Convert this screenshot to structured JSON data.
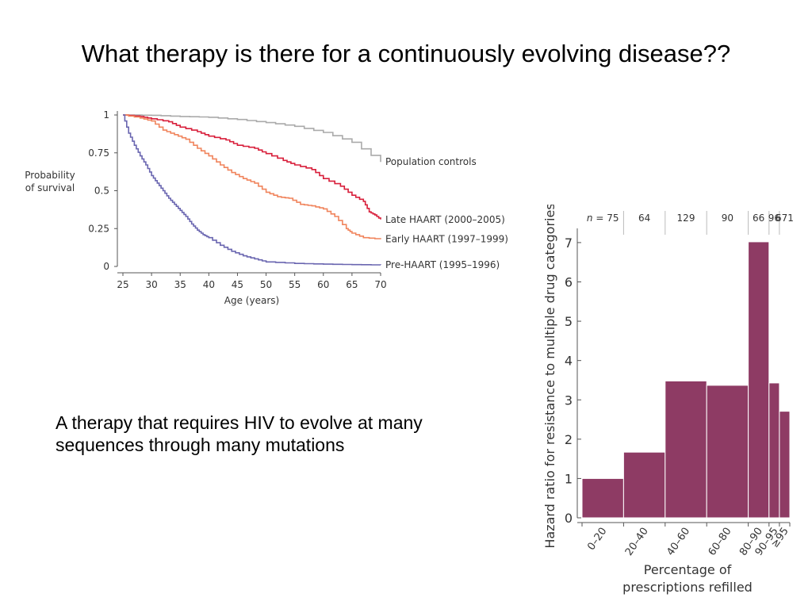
{
  "slide": {
    "title": "What therapy is there for a continuously evolving disease??",
    "body": "A therapy that requires HIV to  evolve at many sequences through many mutations"
  },
  "chart_data": [
    {
      "type": "line",
      "title": "",
      "xlabel": "Age (years)",
      "ylabel_lines": [
        "Probability",
        "of survival"
      ],
      "xlim": [
        25,
        70
      ],
      "ylim": [
        0,
        1
      ],
      "x_ticks": [
        25,
        30,
        35,
        40,
        45,
        50,
        55,
        60,
        65,
        70
      ],
      "y_ticks": [
        0,
        0.25,
        0.5,
        0.75,
        1
      ],
      "y_tick_labels": [
        "0",
        "0.25",
        "0.5",
        "0.75",
        "1"
      ],
      "grid": false,
      "series": [
        {
          "name": "Population controls",
          "color": "#aaaaaa",
          "x": [
            25,
            30,
            35,
            40,
            45,
            50,
            55,
            60,
            65,
            70
          ],
          "y": [
            1.0,
            0.998,
            0.99,
            0.985,
            0.97,
            0.95,
            0.925,
            0.885,
            0.82,
            0.69
          ]
        },
        {
          "name": "Late HAART (2000–2005)",
          "color": "#d81e3a",
          "x": [
            25,
            28,
            30,
            33,
            35,
            38,
            40,
            43,
            45,
            48,
            50,
            53,
            55,
            58,
            60,
            63,
            65,
            67,
            68,
            69,
            70
          ],
          "y": [
            1.0,
            0.99,
            0.975,
            0.955,
            0.92,
            0.89,
            0.86,
            0.835,
            0.8,
            0.78,
            0.745,
            0.7,
            0.67,
            0.64,
            0.58,
            0.53,
            0.47,
            0.43,
            0.36,
            0.34,
            0.31
          ]
        },
        {
          "name": "Early HAART (1997–1999)",
          "color": "#f0845c",
          "x": [
            25,
            28,
            30,
            32,
            34,
            36,
            38,
            40,
            42,
            44,
            46,
            48,
            50,
            52,
            54,
            56,
            58,
            60,
            62,
            64,
            65,
            67,
            70
          ],
          "y": [
            1.0,
            0.98,
            0.96,
            0.9,
            0.87,
            0.84,
            0.78,
            0.73,
            0.67,
            0.62,
            0.58,
            0.55,
            0.49,
            0.46,
            0.45,
            0.41,
            0.4,
            0.38,
            0.33,
            0.25,
            0.22,
            0.19,
            0.18
          ]
        },
        {
          "name": "Pre-HAART (1995–1996)",
          "color": "#6a66b0",
          "x": [
            25,
            26,
            27,
            28,
            29,
            30,
            31,
            32,
            33,
            34,
            35,
            36,
            37,
            38,
            39,
            40,
            42,
            44,
            46,
            48,
            50,
            55,
            60,
            65,
            70
          ],
          "y": [
            1.0,
            0.88,
            0.8,
            0.73,
            0.67,
            0.6,
            0.55,
            0.5,
            0.45,
            0.41,
            0.37,
            0.33,
            0.28,
            0.24,
            0.21,
            0.19,
            0.14,
            0.1,
            0.07,
            0.05,
            0.03,
            0.02,
            0.015,
            0.012,
            0.01
          ]
        }
      ]
    },
    {
      "type": "bar",
      "title": "",
      "xlabel_lines": [
        "Percentage of",
        "prescriptions refilled"
      ],
      "ylabel": "Hazard ratio for resistance to multiple drug categories",
      "ylim": [
        0,
        7.2
      ],
      "y_ticks": [
        0,
        1,
        2,
        3,
        4,
        5,
        6,
        7
      ],
      "grid": false,
      "color": "#8e3b64",
      "n_prefix": "n",
      "n_prefix_suffix": " = ",
      "categories": [
        "0–20",
        "20–40",
        "40–60",
        "60–80",
        "80–90",
        "90–95",
        "≥95"
      ],
      "bin_edges": [
        0,
        20,
        40,
        60,
        80,
        90,
        95,
        100
      ],
      "values": [
        1.0,
        1.67,
        3.48,
        3.37,
        7.02,
        3.43,
        2.71
      ],
      "n": [
        "75",
        "64",
        "129",
        "90",
        "66",
        "96",
        "671"
      ]
    }
  ]
}
